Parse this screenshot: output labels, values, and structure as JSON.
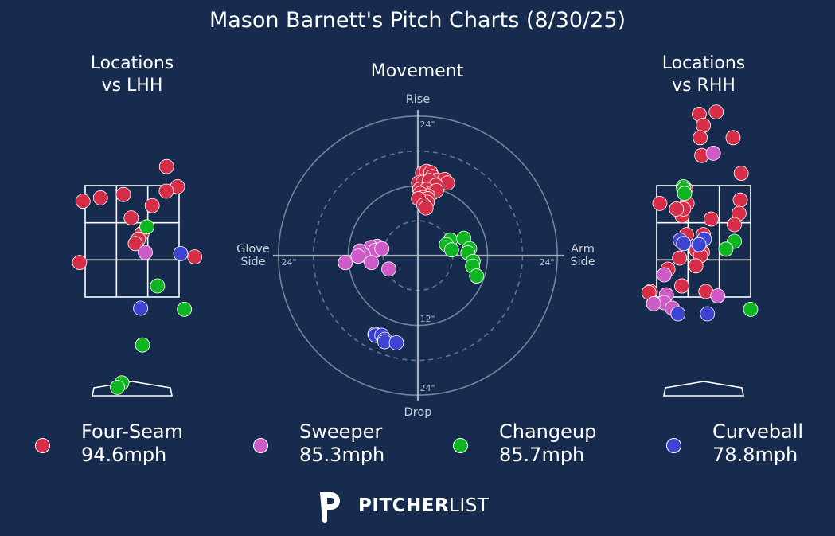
{
  "title": "Mason Barnett's Pitch Charts (8/30/25)",
  "panels": {
    "lhh_title": "Locations\nvs LHH",
    "movement_title": "Movement",
    "rhh_title": "Locations\nvs RHH"
  },
  "movement_axes": {
    "top": "Rise",
    "bottom": "Drop",
    "left": "Glove\nSide",
    "right": "Arm\nSide",
    "ring_labels": [
      "24\"",
      "12\"",
      "24\"",
      "12\"",
      "24\"",
      "12\"",
      "24\""
    ]
  },
  "legend": [
    {
      "name": "Four-Seam",
      "velo": "94.6mph",
      "color": "#d62e48"
    },
    {
      "name": "Sweeper",
      "velo": "85.3mph",
      "color": "#cd5cc8"
    },
    {
      "name": "Changeup",
      "velo": "85.7mph",
      "color": "#10b522"
    },
    {
      "name": "Curveball",
      "velo": "78.8mph",
      "color": "#3e43d2"
    }
  ],
  "logo": {
    "bold": "PITCHER",
    "light": "LIST"
  },
  "chart_data": [
    {
      "type": "scatter",
      "title": "Locations vs LHH",
      "units": "zone units (x: -1.5 to 1.5 = strike zone width, y: 0 = bottom, 1 = top)",
      "series": [
        {
          "name": "Four-Seam",
          "points": [
            [
              1.1,
              1.17
            ],
            [
              1.45,
              0.99
            ],
            [
              1.09,
              0.95
            ],
            [
              -0.28,
              0.92
            ],
            [
              -1.57,
              0.86
            ],
            [
              -1.01,
              0.89
            ],
            [
              0.64,
              0.82
            ],
            [
              -0.03,
              0.71
            ],
            [
              0.31,
              0.57
            ],
            [
              0.2,
              0.52
            ],
            [
              0.1,
              0.48
            ],
            [
              -1.68,
              0.31
            ],
            [
              2.0,
              0.36
            ]
          ]
        },
        {
          "name": "Sweeper",
          "points": [
            [
              0.42,
              0.4
            ]
          ]
        },
        {
          "name": "Changeup",
          "points": [
            [
              0.47,
              0.63
            ],
            [
              0.81,
              0.1
            ],
            [
              1.67,
              -0.11
            ],
            [
              0.33,
              -0.43
            ],
            [
              -0.33,
              -0.77
            ],
            [
              -0.47,
              -0.81
            ]
          ]
        },
        {
          "name": "Curveball",
          "points": [
            [
              1.55,
              0.39
            ],
            [
              0.27,
              -0.1
            ]
          ]
        }
      ]
    },
    {
      "type": "scatter",
      "title": "Movement",
      "units": "inches (x: negative = glove side, positive = arm side; y: positive = rise)",
      "series": [
        {
          "name": "Four-Seam",
          "points": [
            [
              0.8,
              14.2
            ],
            [
              1.5,
              14.5
            ],
            [
              2.2,
              14.3
            ],
            [
              2.5,
              13.6
            ],
            [
              3.3,
              13.0
            ],
            [
              4.6,
              13.1
            ],
            [
              5.1,
              12.5
            ],
            [
              0.1,
              12.5
            ],
            [
              0.9,
              12.6
            ],
            [
              2.0,
              12.9
            ],
            [
              3.1,
              12.1
            ],
            [
              0.3,
              11.4
            ],
            [
              1.5,
              11.4
            ],
            [
              2.6,
              10.9
            ],
            [
              3.2,
              11.2
            ],
            [
              1.7,
              10.3
            ],
            [
              0.4,
              10.7
            ],
            [
              0.9,
              10.0
            ],
            [
              1.7,
              9.8
            ],
            [
              1.6,
              9.2
            ],
            [
              0.1,
              9.8
            ],
            [
              1.0,
              8.7
            ],
            [
              1.4,
              8.2
            ]
          ]
        },
        {
          "name": "Sweeper",
          "points": [
            [
              -7.0,
              1.6
            ],
            [
              -8.1,
              1.4
            ],
            [
              -7.3,
              0.9
            ],
            [
              -6.2,
              1.2
            ],
            [
              -10.0,
              0.8
            ],
            [
              -9.4,
              0.1
            ],
            [
              -10.3,
              -0.1
            ],
            [
              -12.5,
              -1.2
            ],
            [
              -8.0,
              -1.2
            ],
            [
              -5.0,
              -2.3
            ]
          ]
        },
        {
          "name": "Changeup",
          "points": [
            [
              5.6,
              2.7
            ],
            [
              7.9,
              3.0
            ],
            [
              4.9,
              1.9
            ],
            [
              5.8,
              1.0
            ],
            [
              8.9,
              1.2
            ],
            [
              8.6,
              0.5
            ],
            [
              9.5,
              -1.0
            ],
            [
              9.4,
              -1.8
            ],
            [
              10.1,
              -3.5
            ]
          ]
        },
        {
          "name": "Curveball",
          "points": [
            [
              -7.4,
              -13.5
            ],
            [
              -7.3,
              -13.7
            ],
            [
              -6.2,
              -13.7
            ],
            [
              -5.7,
              -14.4
            ],
            [
              -5.7,
              -14.8
            ],
            [
              -3.7,
              -15.0
            ]
          ]
        }
      ]
    },
    {
      "type": "scatter",
      "title": "Locations vs RHH",
      "units": "zone units (x: -1.5 to 1.5 = strike zone width, y: 0 = bottom, 1 = top)",
      "series": [
        {
          "name": "Four-Seam",
          "points": [
            [
              -0.14,
              1.64
            ],
            [
              0.4,
              1.66
            ],
            [
              -0.01,
              1.54
            ],
            [
              -0.11,
              1.43
            ],
            [
              0.94,
              1.43
            ],
            [
              -0.06,
              1.27
            ],
            [
              1.2,
              1.11
            ],
            [
              -0.58,
              0.97
            ],
            [
              -0.69,
              0.73
            ],
            [
              1.17,
              0.87
            ],
            [
              -0.53,
              0.84
            ],
            [
              -1.4,
              0.84
            ],
            [
              -0.64,
              0.79
            ],
            [
              -0.87,
              0.79
            ],
            [
              0.24,
              0.7
            ],
            [
              1.13,
              0.75
            ],
            [
              0.98,
              0.65
            ],
            [
              -0.01,
              0.56
            ],
            [
              -0.55,
              0.56
            ],
            [
              -0.11,
              0.48
            ],
            [
              -0.04,
              0.4
            ],
            [
              -0.23,
              0.42
            ],
            [
              -0.77,
              0.35
            ],
            [
              -0.1,
              0.37
            ],
            [
              -0.25,
              0.28
            ],
            [
              -1.14,
              0.25
            ],
            [
              -1.7,
              0.05
            ],
            [
              -0.69,
              0.1
            ],
            [
              0.07,
              0.05
            ],
            [
              -0.7,
              0.1
            ],
            [
              -1.75,
              0.04
            ]
          ]
        },
        {
          "name": "Sweeper",
          "points": [
            [
              0.31,
              1.29
            ],
            [
              -1.26,
              0.2
            ],
            [
              -1.19,
              0.02
            ],
            [
              0.45,
              0.01
            ],
            [
              -1.27,
              -0.05
            ],
            [
              -1.6,
              -0.06
            ],
            [
              -1.0,
              -0.1
            ]
          ]
        },
        {
          "name": "Changeup",
          "points": [
            [
              -0.65,
              0.99
            ],
            [
              -0.64,
              0.97
            ],
            [
              -0.61,
              0.93
            ],
            [
              0.98,
              0.5
            ],
            [
              0.71,
              0.43
            ],
            [
              1.5,
              -0.11
            ]
          ]
        },
        {
          "name": "Curveball",
          "points": [
            [
              -0.75,
              0.51
            ],
            [
              -0.64,
              0.48
            ],
            [
              0.02,
              0.52
            ],
            [
              -0.15,
              0.47
            ],
            [
              -0.82,
              -0.15
            ],
            [
              0.12,
              -0.15
            ]
          ]
        }
      ]
    }
  ]
}
